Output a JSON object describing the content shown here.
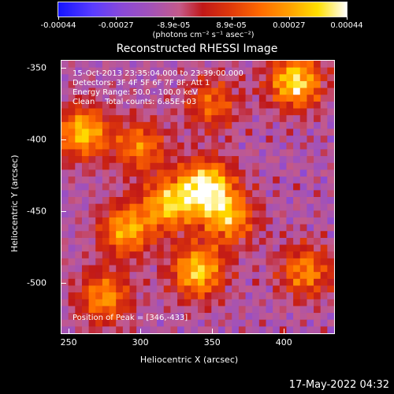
{
  "colorbar": {
    "tick_labels": [
      "-0.00044",
      "-0.00027",
      "-8.9e-05",
      "8.9e-05",
      "0.00027",
      "0.00044"
    ],
    "units": "(photons cm⁻² s⁻¹ asec⁻²)"
  },
  "chart_data": {
    "type": "heatmap",
    "title": "Reconstructed RHESSI Image",
    "xlabel": "Heliocentric X (arcsec)",
    "ylabel": "Heliocentric Y (arcsec)",
    "xlim": [
      245,
      435
    ],
    "ylim": [
      -535,
      -345
    ],
    "x_ticks": [
      250,
      300,
      350,
      400
    ],
    "y_ticks": [
      -350,
      -400,
      -450,
      -500
    ],
    "x_tick_labels": [
      "250",
      "300",
      "350",
      "400"
    ],
    "y_tick_labels": [
      "-350",
      "-400",
      "-450",
      "-500"
    ],
    "colorbar_range": [
      -0.00044,
      0.00044
    ],
    "annotations": [
      "15-Oct-2013 23:35:04.000 to 23:39:00.000",
      "Detectors: 3F 4F 5F 6F 7F 8F, Att 1",
      "Energy Range: 50.0 - 100.0 keV",
      "Clean    Total counts: 6.85E+03"
    ],
    "peak_label": "Position of Peak = [346,-433]",
    "peak": [
      346,
      -433
    ],
    "hot_spots": [
      {
        "x": 346,
        "y": -433,
        "value": 0.00044
      },
      {
        "x": 408,
        "y": -360,
        "value": 0.0004
      },
      {
        "x": 340,
        "y": -492,
        "value": 0.00036
      },
      {
        "x": 260,
        "y": -395,
        "value": 0.00034
      },
      {
        "x": 290,
        "y": -463,
        "value": 0.0003
      },
      {
        "x": 320,
        "y": -445,
        "value": 0.00032
      },
      {
        "x": 362,
        "y": -455,
        "value": 0.00028
      },
      {
        "x": 300,
        "y": -405,
        "value": 0.00022
      },
      {
        "x": 275,
        "y": -510,
        "value": 0.00026
      },
      {
        "x": 415,
        "y": -492,
        "value": 0.00024
      },
      {
        "x": 350,
        "y": -375,
        "value": 0.00018
      }
    ]
  },
  "footer": "17-May-2022 04:32"
}
